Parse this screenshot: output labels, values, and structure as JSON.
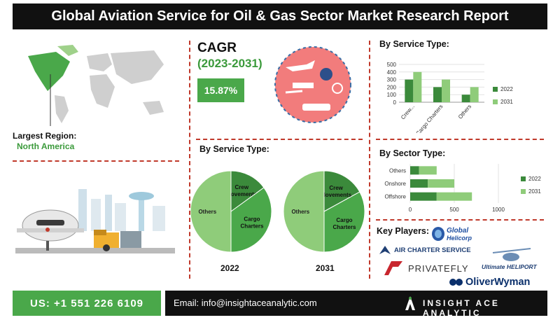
{
  "title": "Global Aviation Service for Oil & Gas Sector Market Research Report",
  "cagr": {
    "label": "CAGR",
    "period": "(2023-2031)",
    "value": "15.87%"
  },
  "region": {
    "label": "Largest Region:",
    "value": "North America"
  },
  "footer": {
    "phone": "US: +1 551 226 6109",
    "email": "Email: info@insightaceanalytic.com",
    "brand": "INSIGHT ACE ANALYTIC"
  },
  "key_players": {
    "label": "Key Players:",
    "logos": [
      "GlobalHelicorp",
      "AIR CHARTER SERVICE",
      "PRIVATEFLY",
      "Ultimate HELIPORT",
      "OliverWyman"
    ]
  },
  "colors": {
    "dark_green": "#3b8a3b",
    "light_green": "#8fcc7a",
    "mid_green": "#5daa4f",
    "accent_red": "#c0392b"
  },
  "chart_data": [
    {
      "id": "by_service_bar",
      "type": "bar",
      "title": "By Service Type:",
      "categories": [
        "Crew...",
        "Cargo Charters",
        "Others"
      ],
      "series": [
        {
          "name": "2022",
          "values": [
            300,
            200,
            100
          ]
        },
        {
          "name": "2031",
          "values": [
            400,
            300,
            200
          ]
        }
      ],
      "ylim": [
        0,
        500
      ],
      "yticks": [
        "0",
        "100",
        "200",
        "300",
        "400",
        "500"
      ],
      "legend": "right",
      "grid": true
    },
    {
      "id": "by_sector_bar",
      "type": "bar",
      "orientation": "horizontal",
      "stacked": true,
      "title": "By Sector Type:",
      "categories": [
        "Others",
        "Onshore",
        "Offshore"
      ],
      "series": [
        {
          "name": "2022",
          "values": [
            100,
            200,
            300
          ]
        },
        {
          "name": "2031",
          "values": [
            200,
            300,
            400
          ]
        }
      ],
      "xlim": [
        0,
        1000
      ],
      "xticks": [
        "0",
        "500",
        "1000"
      ],
      "legend": "right",
      "grid": true
    },
    {
      "id": "pie_2022",
      "type": "pie",
      "title": "By Service Type:",
      "year": "2022",
      "labels": [
        "Crew Movements",
        "Cargo Charters",
        "Others"
      ],
      "values": [
        15,
        35,
        50
      ]
    },
    {
      "id": "pie_2031",
      "type": "pie",
      "year": "2031",
      "labels": [
        "Crew Movements",
        "Cargo Charters",
        "Others"
      ],
      "values": [
        17,
        33,
        50
      ]
    }
  ]
}
